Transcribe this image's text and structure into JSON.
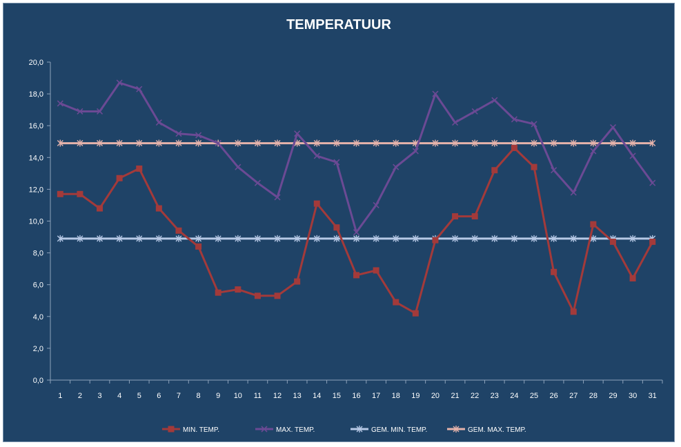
{
  "chart_data": {
    "type": "line",
    "title": "TEMPERATUUR",
    "xlabel": "",
    "ylabel": "",
    "ylim": [
      0,
      20
    ],
    "y_ticks": [
      "0,0",
      "2,0",
      "4,0",
      "6,0",
      "8,0",
      "10,0",
      "12,0",
      "14,0",
      "16,0",
      "18,0",
      "20,0"
    ],
    "categories": [
      "1",
      "2",
      "3",
      "4",
      "5",
      "6",
      "7",
      "8",
      "9",
      "10",
      "11",
      "12",
      "13",
      "14",
      "15",
      "16",
      "17",
      "18",
      "19",
      "20",
      "21",
      "22",
      "23",
      "24",
      "25",
      "26",
      "27",
      "28",
      "29",
      "30",
      "31"
    ],
    "grid": false,
    "legend_position": "bottom",
    "series": [
      {
        "name": "MIN. TEMP.",
        "color": "#a33a3a",
        "marker": "square",
        "values": [
          11.7,
          11.7,
          10.8,
          12.7,
          13.3,
          10.8,
          9.4,
          8.4,
          5.5,
          5.7,
          5.3,
          5.3,
          6.2,
          11.1,
          9.6,
          6.6,
          6.9,
          4.9,
          4.2,
          8.8,
          10.3,
          10.3,
          13.2,
          14.6,
          13.4,
          6.8,
          4.3,
          9.8,
          8.7,
          6.4,
          8.7
        ]
      },
      {
        "name": "MAX. TEMP.",
        "color": "#6b4a94",
        "marker": "x",
        "values": [
          17.4,
          16.9,
          16.9,
          18.7,
          18.3,
          16.2,
          15.5,
          15.4,
          14.9,
          13.4,
          12.4,
          11.5,
          15.5,
          14.1,
          13.7,
          9.3,
          11.0,
          13.4,
          14.4,
          18.0,
          16.2,
          16.9,
          17.6,
          16.4,
          16.1,
          13.2,
          11.8,
          14.4,
          15.9,
          14.1,
          12.4
        ]
      },
      {
        "name": "GEM. MIN. TEMP.",
        "color": "#b7c9e6",
        "marker": "star",
        "values": [
          8.9,
          8.9,
          8.9,
          8.9,
          8.9,
          8.9,
          8.9,
          8.9,
          8.9,
          8.9,
          8.9,
          8.9,
          8.9,
          8.9,
          8.9,
          8.9,
          8.9,
          8.9,
          8.9,
          8.9,
          8.9,
          8.9,
          8.9,
          8.9,
          8.9,
          8.9,
          8.9,
          8.9,
          8.9,
          8.9,
          8.9
        ]
      },
      {
        "name": "GEM. MAX. TEMP.",
        "color": "#e6b3ab",
        "marker": "star",
        "values": [
          14.9,
          14.9,
          14.9,
          14.9,
          14.9,
          14.9,
          14.9,
          14.9,
          14.9,
          14.9,
          14.9,
          14.9,
          14.9,
          14.9,
          14.9,
          14.9,
          14.9,
          14.9,
          14.9,
          14.9,
          14.9,
          14.9,
          14.9,
          14.9,
          14.9,
          14.9,
          14.9,
          14.9,
          14.9,
          14.9,
          14.9
        ]
      }
    ]
  }
}
